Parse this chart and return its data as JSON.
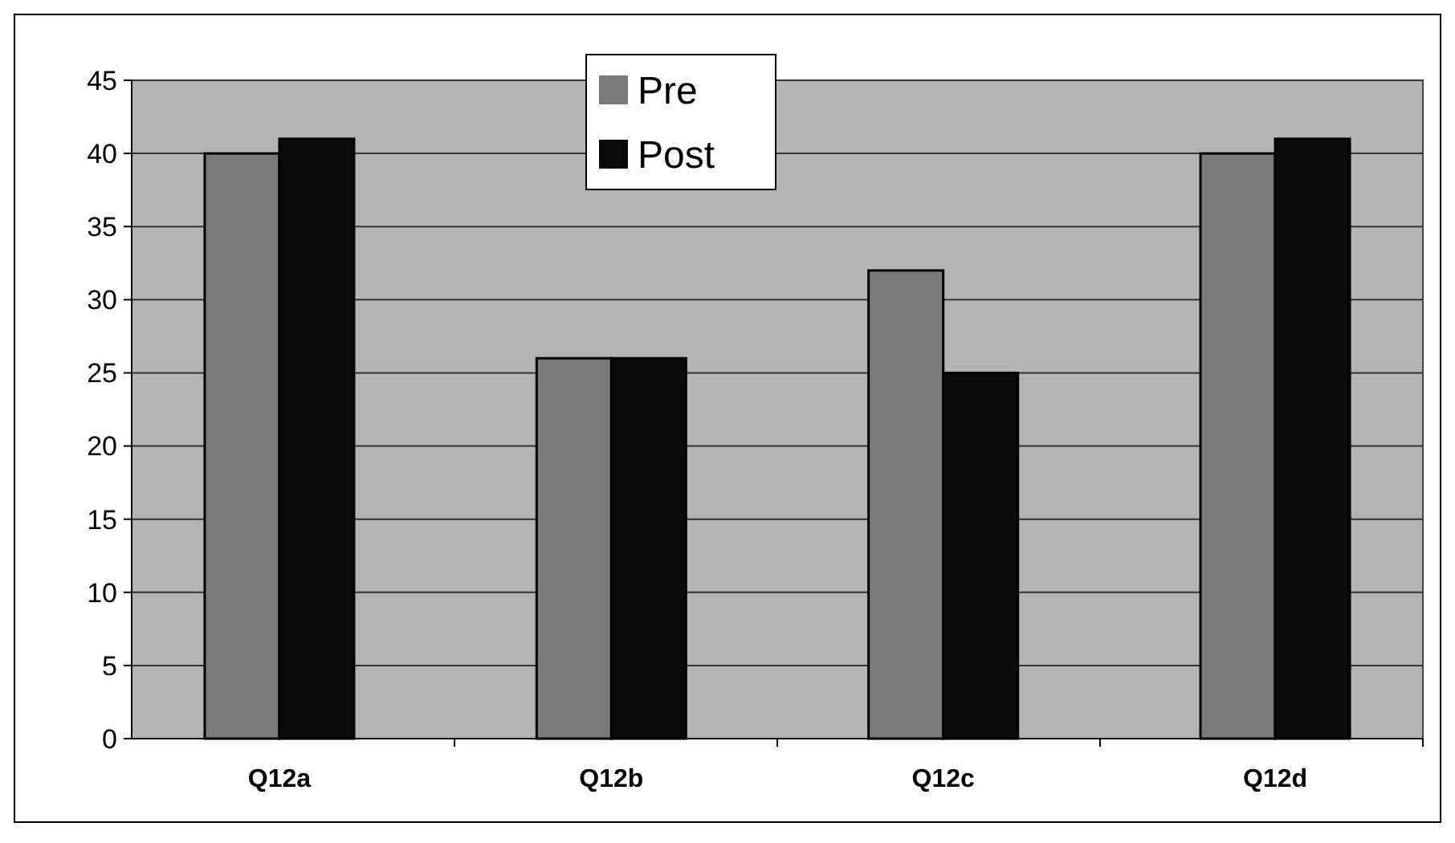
{
  "chart_data": {
    "type": "bar",
    "categories": [
      "Q12a",
      "Q12b",
      "Q12c",
      "Q12d"
    ],
    "series": [
      {
        "name": "Pre",
        "color": "#7a7a7a",
        "values": [
          40,
          26,
          32,
          40
        ]
      },
      {
        "name": "Post",
        "color": "#0a0a0a",
        "values": [
          41,
          26,
          25,
          41
        ]
      }
    ],
    "ylim": [
      0,
      45
    ],
    "yticks": [
      0,
      5,
      10,
      15,
      20,
      25,
      30,
      35,
      40,
      45
    ],
    "grid": "y",
    "legend": "top"
  }
}
